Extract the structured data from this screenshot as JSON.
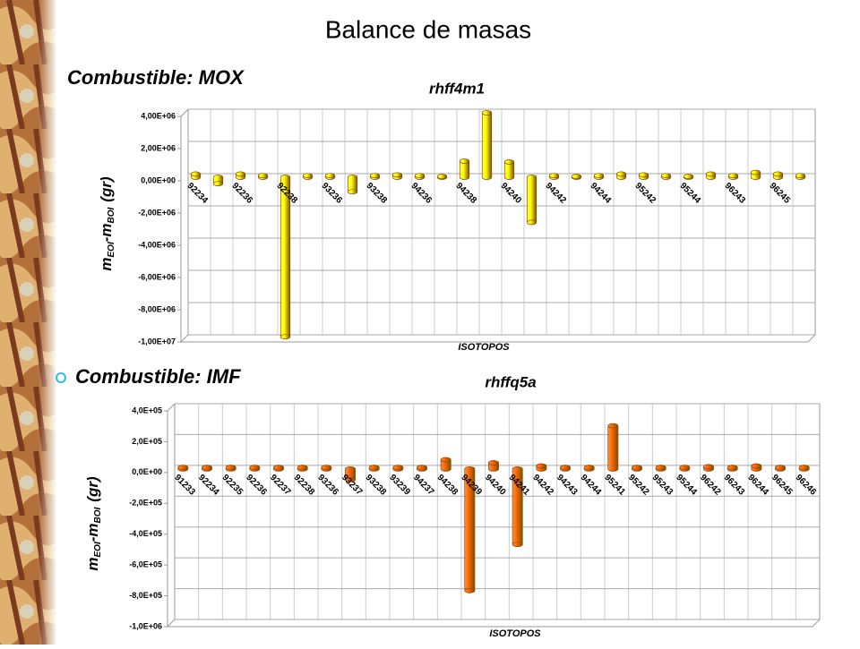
{
  "slide": {
    "title": "Balance de masas",
    "subtitles": [
      "Combustible: MOX",
      "Combustible: IMF"
    ]
  },
  "chart_data": [
    {
      "type": "bar",
      "title": "rhff4m1",
      "x_label": "ISOTOPOS",
      "y_label": [
        "m",
        "EOI",
        "-m",
        "BOI",
        "(gr)"
      ],
      "color": "#ffff00",
      "categories": [
        "92234",
        null,
        "92236",
        null,
        "92238",
        null,
        "93236",
        null,
        "93238",
        null,
        "94236",
        null,
        "94238",
        null,
        "94240",
        null,
        "94242",
        null,
        "94244",
        null,
        "95242",
        null,
        "95244",
        null,
        "96243",
        null,
        "96245",
        null
      ],
      "values": [
        200000,
        -400000,
        200000,
        100000,
        -9900000,
        100000,
        100000,
        -900000,
        100000,
        150000,
        100000,
        50000,
        1000000,
        4000000,
        950000,
        -2800000,
        100000,
        50000,
        100000,
        200000,
        150000,
        100000,
        50000,
        200000,
        100000,
        300000,
        200000,
        100000
      ],
      "ylim": [
        -10000000,
        4000000
      ],
      "yticks": [
        {
          "value": 4000000,
          "label": "4,00E+06"
        },
        {
          "value": 2000000,
          "label": "2,00E+06"
        },
        {
          "value": 0,
          "label": "0,00E+00"
        },
        {
          "value": -2000000,
          "label": "-2,00E+06"
        },
        {
          "value": -4000000,
          "label": "-4,00E+06"
        },
        {
          "value": -6000000,
          "label": "-6,00E+06"
        },
        {
          "value": -8000000,
          "label": "-8,00E+06"
        },
        {
          "value": -10000000,
          "label": "-1,00E+07"
        }
      ],
      "grid": true
    },
    {
      "type": "bar",
      "title": "rhffq5a",
      "x_label": "ISOTOPOS",
      "y_label": [
        "m",
        "EOI",
        "-m",
        "BOI",
        "(gr)"
      ],
      "color": "#ff6600",
      "categories": [
        "91233",
        "92234",
        "92235",
        "92236",
        "92237",
        "92238",
        "93236",
        "93237",
        "93238",
        "93239",
        "94237",
        "94238",
        "94239",
        "94240",
        "94241",
        "94242",
        "94243",
        "94244",
        "95241",
        "95242",
        "95243",
        "95244",
        "96242",
        "96243",
        "96244",
        "96245",
        "96246"
      ],
      "values": [
        10000,
        10000,
        10000,
        10000,
        10000,
        10000,
        10000,
        -70000,
        10000,
        10000,
        10000,
        60000,
        -790000,
        40000,
        -490000,
        20000,
        10000,
        10000,
        280000,
        10000,
        10000,
        10000,
        15000,
        10000,
        20000,
        10000,
        10000
      ],
      "ylim": [
        -1000000,
        400000
      ],
      "yticks": [
        {
          "value": 400000,
          "label": "4,0E+05"
        },
        {
          "value": 200000,
          "label": "2,0E+05"
        },
        {
          "value": 0,
          "label": "0,0E+00"
        },
        {
          "value": -200000,
          "label": "-2,0E+05"
        },
        {
          "value": -400000,
          "label": "-4,0E+05"
        },
        {
          "value": -600000,
          "label": "-6,0E+05"
        },
        {
          "value": -800000,
          "label": "-8,0E+05"
        },
        {
          "value": -1000000,
          "label": "-1,0E+06"
        }
      ],
      "grid": true
    }
  ]
}
